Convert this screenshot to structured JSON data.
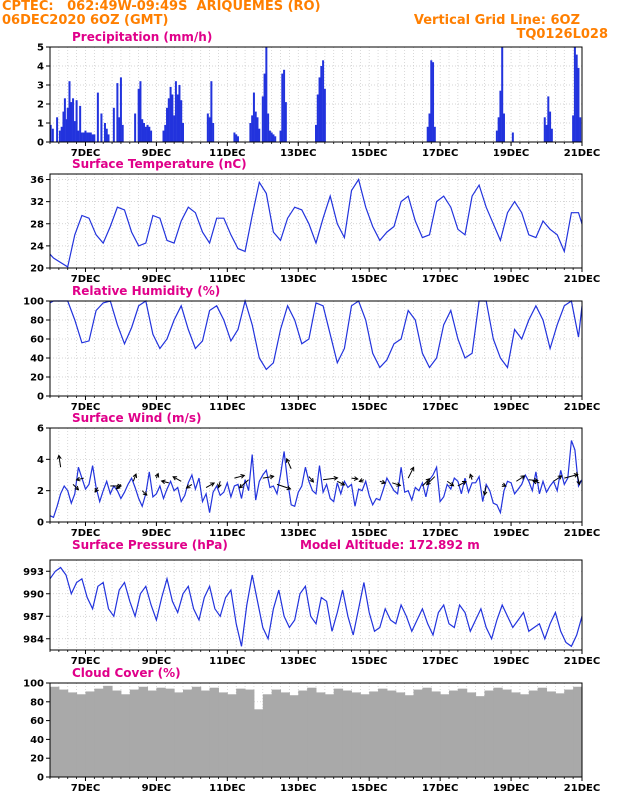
{
  "header": {
    "line1_left": "CPTEC:   062:49W-09:49S  ARIQUEMES (RO)",
    "line2_left": "06DEC2020 6OZ (GMT)",
    "line1_right": "Vertical Grid Line: 6OZ",
    "line2_right": "TQ0126L028"
  },
  "colors": {
    "header": "#ff7f00",
    "title": "#e0008a",
    "line": "#2233dd",
    "bar": "#2233dd",
    "cloud": "#a9a9a9",
    "wind_arrow": "#000000"
  },
  "x_axis": {
    "tick_labels": [
      "7DEC",
      "9DEC",
      "11DEC",
      "13DEC",
      "15DEC",
      "17DEC",
      "19DEC",
      "21DEC"
    ],
    "day_range": [
      6.0,
      21.0
    ],
    "tick_days": [
      7,
      9,
      11,
      13,
      15,
      17,
      19,
      21
    ],
    "grid_every_hours": 6
  },
  "chart_data": [
    {
      "type": "bar",
      "id": "precip",
      "title": "Precipitation  (mm/h)",
      "ylim": [
        0,
        5
      ],
      "yticks": [
        0,
        1,
        2,
        3,
        4,
        5
      ],
      "x_days": [
        6.02,
        6.08,
        6.2,
        6.28,
        6.33,
        6.38,
        6.42,
        6.47,
        6.5,
        6.55,
        6.6,
        6.65,
        6.7,
        6.75,
        6.8,
        6.85,
        6.9,
        6.95,
        7.0,
        7.05,
        7.1,
        7.15,
        7.2,
        7.25,
        7.35,
        7.45,
        7.55,
        7.6,
        7.65,
        7.8,
        7.9,
        7.95,
        8.0,
        8.05,
        8.4,
        8.5,
        8.55,
        8.6,
        8.65,
        8.7,
        8.75,
        8.8,
        8.85,
        9.2,
        9.25,
        9.3,
        9.35,
        9.4,
        9.45,
        9.5,
        9.55,
        9.6,
        9.65,
        9.7,
        9.75,
        10.45,
        10.5,
        10.55,
        10.6,
        11.2,
        11.25,
        11.3,
        11.65,
        11.7,
        11.75,
        11.8,
        11.85,
        11.9,
        12.0,
        12.05,
        12.1,
        12.15,
        12.2,
        12.25,
        12.3,
        12.35,
        12.5,
        12.55,
        12.6,
        12.65,
        13.5,
        13.55,
        13.6,
        13.65,
        13.7,
        13.75,
        16.65,
        16.7,
        16.75,
        16.8,
        16.85,
        18.6,
        18.65,
        18.7,
        18.75,
        18.8,
        19.05,
        19.95,
        20.0,
        20.05,
        20.1,
        20.15,
        20.75,
        20.8,
        20.85,
        20.9,
        20.95
      ],
      "values": [
        0.9,
        0.7,
        1.3,
        0.6,
        0.8,
        1.6,
        2.3,
        1.2,
        1.8,
        3.2,
        2.1,
        2.3,
        1.1,
        2.2,
        0.6,
        1.9,
        0.5,
        0.5,
        0.6,
        0.5,
        0.5,
        0.5,
        0.4,
        0.4,
        2.6,
        1.5,
        1.0,
        0.7,
        0.4,
        1.8,
        3.1,
        1.3,
        3.4,
        0.9,
        1.5,
        2.8,
        3.2,
        1.2,
        1.0,
        0.8,
        0.9,
        0.8,
        0.6,
        0.6,
        0.9,
        1.8,
        2.3,
        2.9,
        2.5,
        1.4,
        3.2,
        2.5,
        3.0,
        2.2,
        1.0,
        1.5,
        1.3,
        3.2,
        1.0,
        0.5,
        0.4,
        0.3,
        1.0,
        1.4,
        2.6,
        1.6,
        1.3,
        0.7,
        2.4,
        3.6,
        5.0,
        1.5,
        0.6,
        0.5,
        0.4,
        0.3,
        0.6,
        3.6,
        3.8,
        2.1,
        0.9,
        2.5,
        3.4,
        4.0,
        4.3,
        2.8,
        0.8,
        1.5,
        4.3,
        4.2,
        0.8,
        0.6,
        1.3,
        2.7,
        5.0,
        1.5,
        0.5,
        1.3,
        0.9,
        2.4,
        1.6,
        0.7,
        1.4,
        5.0,
        4.6,
        3.9,
        1.3
      ]
    },
    {
      "type": "line",
      "id": "temp",
      "title": "Surface Temperature (nC)",
      "ylim": [
        20,
        37
      ],
      "yticks": [
        20,
        24,
        28,
        32,
        36
      ],
      "x_days": [
        6.0,
        6.1,
        6.3,
        6.5,
        6.7,
        6.9,
        7.1,
        7.3,
        7.5,
        7.7,
        7.9,
        8.1,
        8.3,
        8.5,
        8.7,
        8.9,
        9.1,
        9.3,
        9.5,
        9.7,
        9.9,
        10.1,
        10.3,
        10.5,
        10.7,
        10.9,
        11.1,
        11.3,
        11.5,
        11.7,
        11.9,
        12.1,
        12.3,
        12.5,
        12.7,
        12.9,
        13.1,
        13.3,
        13.5,
        13.7,
        13.9,
        14.1,
        14.3,
        14.5,
        14.7,
        14.9,
        15.1,
        15.3,
        15.5,
        15.7,
        15.9,
        16.1,
        16.3,
        16.5,
        16.7,
        16.9,
        17.1,
        17.3,
        17.5,
        17.7,
        17.9,
        18.1,
        18.3,
        18.5,
        18.7,
        18.9,
        19.1,
        19.3,
        19.5,
        19.7,
        19.9,
        20.1,
        20.3,
        20.5,
        20.7,
        20.9,
        21.0
      ],
      "values": [
        22.5,
        21.8,
        21.0,
        20.2,
        26.0,
        29.5,
        29.0,
        26.0,
        24.5,
        27.5,
        31.0,
        30.5,
        26.5,
        24.0,
        24.5,
        29.5,
        29.0,
        25.0,
        24.5,
        28.5,
        31.0,
        30.0,
        26.5,
        24.5,
        29.0,
        29.0,
        26.0,
        23.5,
        23.0,
        29.5,
        35.5,
        33.5,
        26.5,
        25.0,
        29.0,
        31.0,
        30.5,
        28.0,
        24.5,
        29.0,
        33.0,
        28.0,
        25.5,
        34.0,
        36.0,
        31.0,
        27.5,
        25.0,
        26.5,
        27.5,
        32.0,
        33.0,
        28.5,
        25.5,
        26.0,
        32.0,
        33.0,
        31.0,
        27.0,
        26.0,
        33.0,
        35.0,
        31.0,
        28.0,
        25.0,
        30.0,
        32.0,
        30.0,
        26.0,
        25.5,
        28.5,
        27.0,
        26.0,
        23.0,
        30.0,
        30.0,
        28.0
      ]
    },
    {
      "type": "line",
      "id": "rh",
      "title": "Relative Humidity  (%)",
      "ylim": [
        0,
        100
      ],
      "yticks": [
        0,
        20,
        40,
        60,
        80,
        100
      ],
      "x_days": [
        6.0,
        6.1,
        6.3,
        6.5,
        6.7,
        6.9,
        7.1,
        7.3,
        7.5,
        7.7,
        7.9,
        8.1,
        8.3,
        8.5,
        8.7,
        8.9,
        9.1,
        9.3,
        9.5,
        9.7,
        9.9,
        10.1,
        10.3,
        10.5,
        10.7,
        10.9,
        11.1,
        11.3,
        11.5,
        11.7,
        11.9,
        12.1,
        12.3,
        12.5,
        12.7,
        12.9,
        13.1,
        13.3,
        13.5,
        13.7,
        13.9,
        14.1,
        14.3,
        14.5,
        14.7,
        14.9,
        15.1,
        15.3,
        15.5,
        15.7,
        15.9,
        16.1,
        16.3,
        16.5,
        16.7,
        16.9,
        17.1,
        17.3,
        17.5,
        17.7,
        17.9,
        18.1,
        18.3,
        18.5,
        18.7,
        18.9,
        19.1,
        19.3,
        19.5,
        19.7,
        19.9,
        20.1,
        20.3,
        20.5,
        20.7,
        20.9,
        21.0
      ],
      "values": [
        98,
        100,
        100,
        100,
        80,
        56,
        58,
        90,
        98,
        100,
        75,
        55,
        72,
        95,
        100,
        65,
        50,
        60,
        80,
        95,
        70,
        50,
        58,
        90,
        95,
        80,
        58,
        70,
        100,
        75,
        40,
        28,
        35,
        70,
        95,
        80,
        55,
        60,
        98,
        95,
        65,
        35,
        50,
        95,
        100,
        80,
        45,
        30,
        38,
        55,
        60,
        90,
        80,
        45,
        30,
        40,
        75,
        90,
        60,
        40,
        45,
        100,
        100,
        60,
        40,
        30,
        70,
        60,
        80,
        95,
        80,
        50,
        75,
        95,
        100,
        62,
        95
      ]
    },
    {
      "type": "line",
      "id": "wind",
      "title": "Surface Wind  (m/s)",
      "ylim": [
        0,
        6
      ],
      "yticks": [
        0,
        2,
        4,
        6
      ],
      "x_days": [
        6.0,
        6.1,
        6.2,
        6.3,
        6.4,
        6.5,
        6.6,
        6.7,
        6.8,
        6.9,
        7.0,
        7.1,
        7.2,
        7.3,
        7.4,
        7.5,
        7.6,
        7.7,
        7.8,
        7.9,
        8.0,
        8.1,
        8.2,
        8.3,
        8.4,
        8.5,
        8.6,
        8.7,
        8.8,
        8.9,
        9.0,
        9.1,
        9.2,
        9.3,
        9.4,
        9.5,
        9.6,
        9.7,
        9.8,
        9.9,
        10.0,
        10.1,
        10.2,
        10.3,
        10.4,
        10.5,
        10.6,
        10.7,
        10.8,
        10.9,
        11.0,
        11.1,
        11.2,
        11.3,
        11.4,
        11.5,
        11.6,
        11.7,
        11.8,
        11.9,
        12.0,
        12.1,
        12.2,
        12.3,
        12.4,
        12.5,
        12.6,
        12.7,
        12.8,
        12.9,
        13.0,
        13.1,
        13.2,
        13.3,
        13.4,
        13.5,
        13.6,
        13.7,
        13.8,
        13.9,
        14.0,
        14.1,
        14.2,
        14.3,
        14.4,
        14.5,
        14.6,
        14.7,
        14.8,
        14.9,
        15.0,
        15.1,
        15.2,
        15.3,
        15.4,
        15.5,
        15.6,
        15.7,
        15.8,
        15.9,
        16.0,
        16.1,
        16.2,
        16.3,
        16.4,
        16.5,
        16.6,
        16.7,
        16.8,
        16.9,
        17.0,
        17.1,
        17.2,
        17.3,
        17.4,
        17.5,
        17.6,
        17.7,
        17.8,
        17.9,
        18.0,
        18.1,
        18.2,
        18.3,
        18.4,
        18.5,
        18.6,
        18.7,
        18.8,
        18.9,
        19.0,
        19.1,
        19.2,
        19.3,
        19.4,
        19.5,
        19.6,
        19.7,
        19.8,
        19.9,
        20.0,
        20.1,
        20.2,
        20.3,
        20.4,
        20.5,
        20.6,
        20.7,
        20.8,
        20.9,
        21.0
      ],
      "values": [
        0.4,
        0.3,
        1.0,
        1.8,
        2.3,
        2.0,
        1.2,
        1.8,
        3.5,
        2.8,
        2.1,
        2.4,
        3.6,
        2.2,
        1.3,
        2.0,
        2.6,
        1.8,
        2.3,
        2.0,
        1.5,
        1.9,
        2.4,
        2.8,
        2.2,
        1.5,
        1.0,
        1.8,
        3.2,
        1.6,
        1.8,
        2.3,
        1.5,
        2.1,
        2.6,
        2.0,
        2.2,
        1.3,
        1.7,
        2.5,
        3.0,
        2.1,
        2.8,
        1.3,
        1.8,
        0.6,
        1.9,
        2.3,
        1.7,
        1.9,
        2.5,
        1.6,
        2.3,
        2.4,
        1.5,
        2.7,
        2.0,
        4.3,
        1.4,
        2.6,
        3.0,
        3.3,
        2.2,
        2.3,
        1.8,
        3.0,
        4.5,
        2.6,
        1.1,
        1.0,
        1.9,
        2.3,
        3.5,
        2.6,
        2.0,
        1.8,
        3.6,
        1.9,
        2.4,
        1.5,
        1.3,
        2.5,
        1.8,
        2.6,
        2.2,
        2.4,
        1.0,
        2.1,
        2.0,
        2.6,
        1.7,
        1.1,
        1.5,
        1.4,
        2.1,
        2.8,
        2.4,
        2.0,
        1.8,
        3.5,
        1.9,
        2.0,
        1.4,
        2.2,
        2.0,
        2.5,
        1.6,
        2.7,
        3.0,
        3.5,
        1.3,
        1.6,
        2.4,
        2.1,
        2.8,
        2.6,
        1.8,
        2.8,
        1.9,
        2.5,
        2.5,
        2.9,
        1.3,
        2.4,
        2.0,
        1.2,
        1.1,
        0.6,
        2.0,
        2.6,
        2.5,
        1.8,
        2.1,
        2.4,
        3.0,
        2.6,
        2.0,
        3.2,
        1.8,
        2.6,
        1.9,
        2.3,
        2.6,
        2.0,
        3.3,
        2.4,
        2.8,
        5.2,
        4.6,
        2.3,
        2.7
      ]
    },
    {
      "type": "line",
      "id": "pressure",
      "title": "Surface Pressure (hPa)",
      "subtitle": "Model Altitude: 172.892  m",
      "ylim": [
        982.5,
        994.5
      ],
      "yticks": [
        984,
        987,
        990,
        993
      ],
      "x_days": [
        6.0,
        6.15,
        6.3,
        6.45,
        6.6,
        6.75,
        6.9,
        7.05,
        7.2,
        7.35,
        7.5,
        7.65,
        7.8,
        7.95,
        8.1,
        8.25,
        8.4,
        8.55,
        8.7,
        8.85,
        9.0,
        9.15,
        9.3,
        9.45,
        9.6,
        9.75,
        9.9,
        10.05,
        10.2,
        10.35,
        10.5,
        10.65,
        10.8,
        10.95,
        11.1,
        11.25,
        11.4,
        11.55,
        11.7,
        11.85,
        12.0,
        12.15,
        12.3,
        12.45,
        12.6,
        12.75,
        12.9,
        13.05,
        13.2,
        13.35,
        13.5,
        13.65,
        13.8,
        13.95,
        14.1,
        14.25,
        14.4,
        14.55,
        14.7,
        14.85,
        15.0,
        15.15,
        15.3,
        15.45,
        15.6,
        15.75,
        15.9,
        16.05,
        16.2,
        16.35,
        16.5,
        16.65,
        16.8,
        16.95,
        17.1,
        17.25,
        17.4,
        17.55,
        17.7,
        17.85,
        18.0,
        18.15,
        18.3,
        18.45,
        18.6,
        18.75,
        18.9,
        19.05,
        19.2,
        19.35,
        19.5,
        19.65,
        19.8,
        19.95,
        20.1,
        20.25,
        20.4,
        20.55,
        20.7,
        20.85,
        21.0
      ],
      "values": [
        992.0,
        993.0,
        993.5,
        992.5,
        990.0,
        991.5,
        992.0,
        989.5,
        988.0,
        991.0,
        991.5,
        988.0,
        987.0,
        990.5,
        991.5,
        989.0,
        987.0,
        990.0,
        991.0,
        988.5,
        986.5,
        989.5,
        992.0,
        989.0,
        987.5,
        990.0,
        991.0,
        988.0,
        986.5,
        989.5,
        991.0,
        988.0,
        987.0,
        989.5,
        990.5,
        986.0,
        983.0,
        988.5,
        992.5,
        989.0,
        985.5,
        984.0,
        988.0,
        990.5,
        987.0,
        985.5,
        986.5,
        990.0,
        991.0,
        987.0,
        986.0,
        989.5,
        989.0,
        985.0,
        987.5,
        990.5,
        987.0,
        984.5,
        988.0,
        991.5,
        987.5,
        985.0,
        985.5,
        988.0,
        986.5,
        986.0,
        988.5,
        987.0,
        985.0,
        986.5,
        988.0,
        986.0,
        984.5,
        987.5,
        988.5,
        986.0,
        985.5,
        988.5,
        987.5,
        985.0,
        986.5,
        988.0,
        985.5,
        984.0,
        986.5,
        988.5,
        987.0,
        985.5,
        986.5,
        987.5,
        985.0,
        985.5,
        986.0,
        984.0,
        986.0,
        987.5,
        985.0,
        983.5,
        983.0,
        984.5,
        987.0
      ]
    },
    {
      "type": "bar",
      "id": "cloud",
      "title": "Cloud Cover (%)",
      "ylim": [
        0,
        100
      ],
      "yticks": [
        0,
        20,
        40,
        60,
        80,
        100
      ],
      "x_days": [
        6.0,
        6.25,
        6.5,
        6.75,
        7.0,
        7.25,
        7.5,
        7.75,
        8.0,
        8.25,
        8.5,
        8.75,
        9.0,
        9.25,
        9.5,
        9.75,
        10.0,
        10.25,
        10.5,
        10.75,
        11.0,
        11.25,
        11.5,
        11.75,
        12.0,
        12.25,
        12.5,
        12.75,
        13.0,
        13.25,
        13.5,
        13.75,
        14.0,
        14.25,
        14.5,
        14.75,
        15.0,
        15.25,
        15.5,
        15.75,
        16.0,
        16.25,
        16.5,
        16.75,
        17.0,
        17.25,
        17.5,
        17.75,
        18.0,
        18.25,
        18.5,
        18.75,
        19.0,
        19.25,
        19.5,
        19.75,
        20.0,
        20.25,
        20.5,
        20.75
      ],
      "values": [
        96,
        93,
        90,
        88,
        91,
        94,
        97,
        92,
        88,
        93,
        96,
        92,
        95,
        94,
        90,
        93,
        96,
        92,
        95,
        90,
        88,
        94,
        93,
        72,
        88,
        93,
        90,
        87,
        92,
        95,
        90,
        88,
        94,
        92,
        90,
        88,
        91,
        94,
        92,
        90,
        87,
        93,
        95,
        91,
        88,
        92,
        94,
        90,
        86,
        92,
        95,
        93,
        90,
        88,
        92,
        95,
        91,
        89,
        93,
        96
      ]
    }
  ],
  "wind_vectors": {
    "x_days": [
      6.3,
      6.65,
      6.95,
      7.35,
      7.7,
      8.0,
      8.35,
      8.6,
      9.0,
      9.35,
      9.7,
      10.0,
      10.4,
      10.8,
      11.2,
      11.6,
      12.0,
      12.4,
      12.8,
      13.3,
      13.7,
      14.1,
      14.5,
      14.85,
      15.3,
      15.65,
      16.1,
      16.5,
      16.85,
      17.2,
      17.5,
      17.9,
      18.3,
      18.75,
      19.15,
      19.5,
      19.8,
      20.2,
      20.5,
      20.85
    ],
    "y_speeds": [
      3.5,
      2.4,
      2.8,
      2.2,
      2.3,
      2.4,
      2.6,
      2.0,
      2.8,
      2.5,
      2.6,
      2.4,
      2.2,
      2.6,
      2.8,
      2.7,
      2.8,
      2.4,
      3.4,
      2.9,
      2.7,
      2.6,
      2.8,
      2.7,
      2.6,
      2.5,
      2.8,
      2.3,
      2.9,
      2.6,
      2.3,
      2.7,
      2.3,
      2.4,
      2.6,
      2.7,
      2.5,
      2.6,
      2.8,
      3.2
    ],
    "u": [
      -0.2,
      0.6,
      -0.8,
      -0.3,
      1.2,
      -0.5,
      0.3,
      0.5,
      0.2,
      -0.8,
      -0.9,
      -0.6,
      0.9,
      -0.2,
      1.1,
      -1.0,
      1.2,
      1.5,
      -0.5,
      0.5,
      1.6,
      0.8,
      0.7,
      -0.5,
      0.6,
      0.9,
      0.6,
      0.8,
      -0.9,
      0.7,
      0.9,
      -0.2,
      -0.2,
      0.4,
      0.9,
      1.0,
      -0.7,
      0.9,
      1.5,
      0.3
    ],
    "v": [
      1.3,
      -0.6,
      -0.2,
      -0.5,
      0.0,
      -0.5,
      0.8,
      -0.5,
      0.5,
      0.2,
      0.5,
      -0.4,
      0.5,
      -0.7,
      0.3,
      -0.9,
      0.2,
      -0.5,
      1.1,
      -0.6,
      0.2,
      -0.4,
      -0.1,
      -0.2,
      -0.2,
      -0.3,
      1.2,
      0.8,
      -0.9,
      -0.5,
      0.5,
      0.6,
      -1.0,
      -0.2,
      0.6,
      -0.1,
      0.2,
      0.6,
      0.4,
      -1.4
    ]
  }
}
